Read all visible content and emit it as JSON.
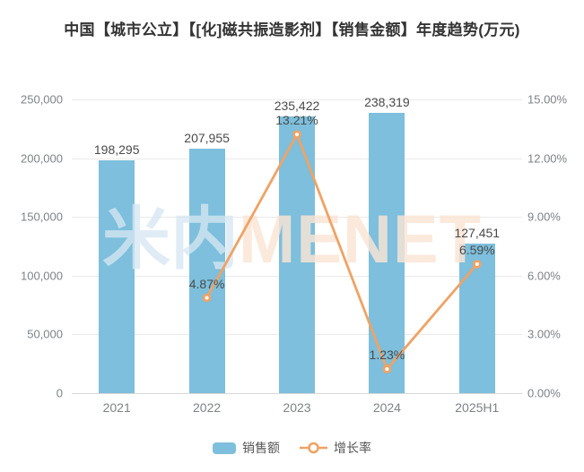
{
  "title": "中国【城市公立】【[化]磁共振造影剂】【销售金额】年度趋势(万元)",
  "watermark": {
    "part1": "米内",
    "part2": "MENET"
  },
  "colors": {
    "bar": "#7DBFDC",
    "line": "#F0A264"
  },
  "legend": {
    "items": [
      {
        "label": "销售额",
        "type": "bar"
      },
      {
        "label": "增长率",
        "type": "line"
      }
    ],
    "position": "bottom"
  },
  "chart_data": {
    "type": "bar",
    "combo": "bar+line",
    "title": "中国【城市公立】【[化]磁共振造影剂】【销售金额】年度趋势(万元)",
    "categories": [
      "2021",
      "2022",
      "2023",
      "2024",
      "2025H1"
    ],
    "series": [
      {
        "name": "销售额",
        "type": "bar",
        "axis": "left",
        "values": [
          198295,
          207955,
          235422,
          238319,
          127451
        ],
        "labels": [
          "198,295",
          "207,955",
          "235,422",
          "238,319",
          "127,451"
        ]
      },
      {
        "name": "增长率",
        "type": "line",
        "axis": "right",
        "values": [
          null,
          4.87,
          13.21,
          1.23,
          6.59
        ],
        "labels": [
          null,
          "4.87%",
          "13.21%",
          "1.23%",
          "6.59%"
        ]
      }
    ],
    "left_axis": {
      "min": 0,
      "max": 250000,
      "step": 50000,
      "ticks": [
        "250,000",
        "200,000",
        "150,000",
        "100,000",
        "50,000",
        "0"
      ]
    },
    "right_axis": {
      "min": 0,
      "max": 15,
      "step": 3,
      "ticks": [
        "15.00%",
        "12.00%",
        "9.00%",
        "6.00%",
        "3.00%",
        "0.00%"
      ]
    },
    "grid": true,
    "legend_position": "bottom"
  }
}
